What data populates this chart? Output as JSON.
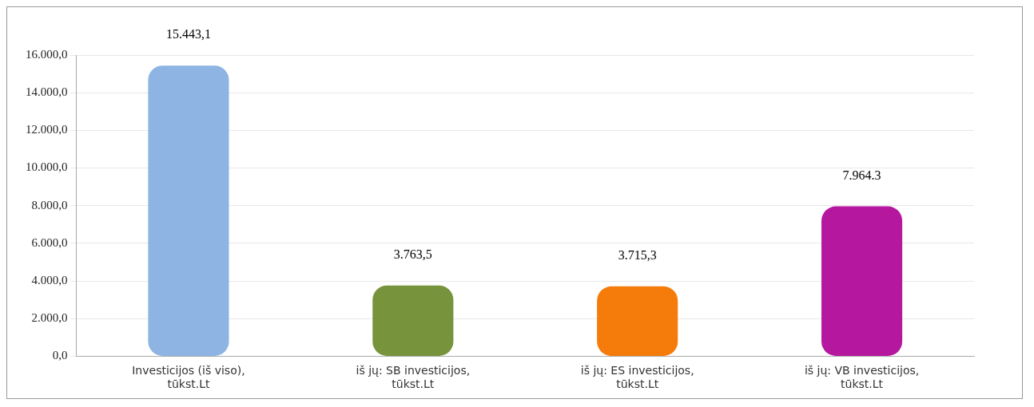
{
  "chart_data": {
    "type": "bar",
    "categories": [
      "Investicijos (iš viso), tūkst.Lt",
      "iš jų: SB investicijos, tūkst.Lt",
      "iš jų: ES investicijos, tūkst.Lt",
      "iš jų: VB investicijos, tūkst.Lt"
    ],
    "values": [
      15443.1,
      3763.5,
      3715.3,
      7964.3
    ],
    "colors": [
      "#8db4e2",
      "#77933c",
      "#f57c0a",
      "#b5179e"
    ],
    "value_labels": [
      "15.443,1",
      "3.763,5",
      "3.715,3",
      "7.964.3"
    ],
    "ylim": [
      0,
      16000
    ],
    "yticks": [
      {
        "value": 0,
        "label": "0,0"
      },
      {
        "value": 2000,
        "label": "2.000,0"
      },
      {
        "value": 4000,
        "label": "4.000,0"
      },
      {
        "value": 6000,
        "label": "6.000,0"
      },
      {
        "value": 8000,
        "label": "8.000,0"
      },
      {
        "value": 10000,
        "label": "10.000,0"
      },
      {
        "value": 12000,
        "label": "12.000,0"
      },
      {
        "value": 14000,
        "label": "14.000,0"
      },
      {
        "value": 16000,
        "label": "16.000,0"
      }
    ],
    "grid": "y",
    "legend": false
  }
}
